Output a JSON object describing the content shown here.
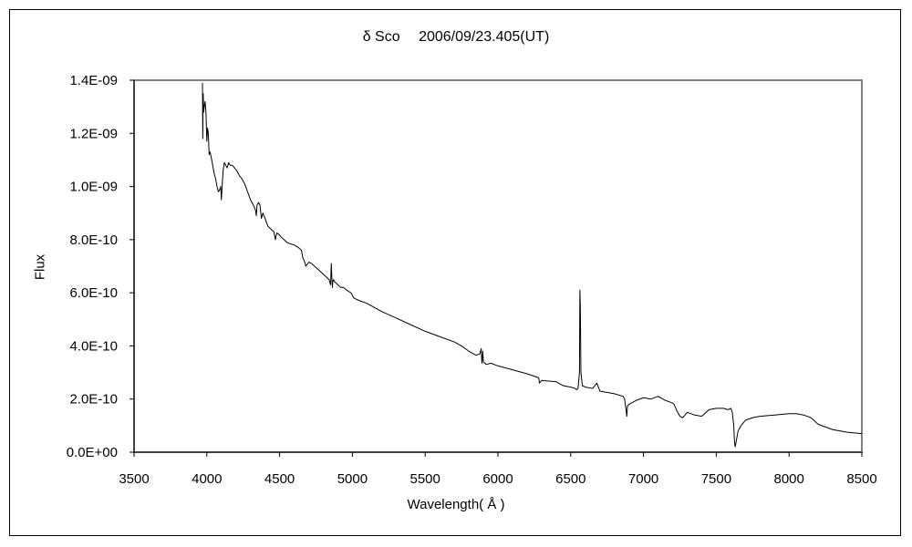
{
  "chart_data": {
    "type": "line",
    "title": "δ Sco　 2006/09/23.405(UT)",
    "xlabel": "Wavelength( Å )",
    "ylabel": "Flux",
    "xlim": [
      3500,
      8500
    ],
    "ylim": [
      0,
      1.4e-09
    ],
    "x_ticks": [
      "3500",
      "4000",
      "4500",
      "5000",
      "5500",
      "6000",
      "6500",
      "7000",
      "7500",
      "8000",
      "8500"
    ],
    "y_ticks": [
      "0.0E+00",
      "2.0E-10",
      "4.0E-10",
      "6.0E-10",
      "8.0E-10",
      "1.0E-09",
      "1.2E-09",
      "1.4E-09"
    ],
    "grid": false,
    "legend": "none",
    "line_color": "#000000",
    "series": [
      {
        "x": [
          3970,
          3972,
          3975,
          3978,
          3982,
          3988,
          3994,
          4000,
          4005,
          4010,
          4016,
          4022,
          4030,
          4040,
          4050,
          4060,
          4070,
          4080,
          4090,
          4095,
          4100,
          4103,
          4107,
          4112,
          4120,
          4130,
          4140,
          4150,
          4160,
          4175,
          4190,
          4205,
          4215,
          4225,
          4240,
          4260,
          4280,
          4300,
          4320,
          4335,
          4340,
          4345,
          4355,
          4365,
          4375,
          4385,
          4400,
          4420,
          4440,
          4460,
          4471,
          4480,
          4495,
          4510,
          4530,
          4550,
          4570,
          4600,
          4630,
          4650,
          4660,
          4670,
          4680,
          4700,
          4720,
          4740,
          4760,
          4780,
          4800,
          4820,
          4840,
          4850,
          4855,
          4861,
          4863,
          4865,
          4870,
          4880,
          4900,
          4920,
          4940,
          4960,
          4990,
          5010,
          5050,
          5100,
          5150,
          5200,
          5300,
          5400,
          5500,
          5600,
          5700,
          5750,
          5800,
          5850,
          5875,
          5885,
          5890,
          5896,
          5900,
          5920,
          5950,
          6000,
          6100,
          6200,
          6280,
          6285,
          6300,
          6400,
          6450,
          6500,
          6530,
          6540,
          6550,
          6560,
          6563,
          6566,
          6570,
          6580,
          6600,
          6650,
          6680,
          6700,
          6800,
          6860,
          6870,
          6880,
          6885,
          6890,
          6900,
          6950,
          7000,
          7050,
          7100,
          7150,
          7200,
          7210,
          7230,
          7250,
          7270,
          7300,
          7350,
          7400,
          7450,
          7500,
          7550,
          7580,
          7600,
          7610,
          7620,
          7625,
          7630,
          7640,
          7650,
          7670,
          7700,
          7750,
          7800,
          7900,
          8000,
          8050,
          8100,
          8150,
          8200,
          8300,
          8400,
          8500
        ],
        "y": [
          1.39e-09,
          1.18e-09,
          1.35e-09,
          1.28e-09,
          1.3e-09,
          1.32e-09,
          1.28e-09,
          1.17e-09,
          1.22e-09,
          1.2e-09,
          1.12e-09,
          1.13e-09,
          1.11e-09,
          1.08e-09,
          1.05e-09,
          1.03e-09,
          1e-09,
          9.8e-10,
          9.9e-10,
          1e-09,
          9.5e-10,
          9.8e-10,
          1.02e-09,
          1.06e-09,
          1.09e-09,
          1.08e-09,
          1.07e-09,
          1.09e-09,
          1.08e-09,
          1.08e-09,
          1.07e-09,
          1.06e-09,
          1.05e-09,
          1.04e-09,
          1.03e-09,
          1.01e-09,
          9.8e-10,
          9.5e-10,
          9.3e-10,
          9.1e-10,
          8.9e-10,
          9.3e-10,
          9.4e-10,
          9.3e-10,
          8.8e-10,
          9e-10,
          8.8e-10,
          8.5e-10,
          8.4e-10,
          8.3e-10,
          8e-10,
          8.25e-10,
          8.2e-10,
          8.1e-10,
          8e-10,
          7.9e-10,
          7.85e-10,
          7.8e-10,
          7.7e-10,
          7.6e-10,
          7.3e-10,
          7.2e-10,
          7e-10,
          7.15e-10,
          7.1e-10,
          7e-10,
          6.9e-10,
          6.8e-10,
          6.7e-10,
          6.6e-10,
          6.5e-10,
          6.3e-10,
          7.1e-10,
          6.3e-10,
          6.2e-10,
          6.4e-10,
          6.5e-10,
          6.4e-10,
          6.3e-10,
          6.2e-10,
          6.2e-10,
          6.1e-10,
          6e-10,
          5.8e-10,
          5.7e-10,
          5.6e-10,
          5.45e-10,
          5.3e-10,
          5.05e-10,
          4.8e-10,
          4.55e-10,
          4.35e-10,
          4.15e-10,
          4e-10,
          3.8e-10,
          3.65e-10,
          3.7e-10,
          3.9e-10,
          3.35e-10,
          3.8e-10,
          3.4e-10,
          3.3e-10,
          3.35e-10,
          3.25e-10,
          3.1e-10,
          2.95e-10,
          2.8e-10,
          2.6e-10,
          2.7e-10,
          2.65e-10,
          2.5e-10,
          2.45e-10,
          2.4e-10,
          2.35e-10,
          2.4e-10,
          3e-10,
          6.1e-10,
          5.5e-10,
          3e-10,
          2.5e-10,
          2.45e-10,
          2.4e-10,
          2.6e-10,
          2.3e-10,
          2.2e-10,
          2.1e-10,
          2e-10,
          1.6e-10,
          1.35e-10,
          1.75e-10,
          1.8e-10,
          1.95e-10,
          2.05e-10,
          2e-10,
          2.1e-10,
          1.95e-10,
          1.85e-10,
          1.8e-10,
          1.55e-10,
          1.35e-10,
          1.3e-10,
          1.5e-10,
          1.4e-10,
          1.35e-10,
          1.6e-10,
          1.65e-10,
          1.65e-10,
          1.6e-10,
          1.65e-10,
          1.5e-10,
          1e-10,
          4e-11,
          2e-11,
          5e-11,
          8e-11,
          1e-10,
          1.2e-10,
          1.3e-10,
          1.35e-10,
          1.4e-10,
          1.45e-10,
          1.45e-10,
          1.4e-10,
          1.3e-10,
          1.05e-10,
          8.5e-11,
          7.5e-11,
          7e-11
        ]
      }
    ]
  }
}
